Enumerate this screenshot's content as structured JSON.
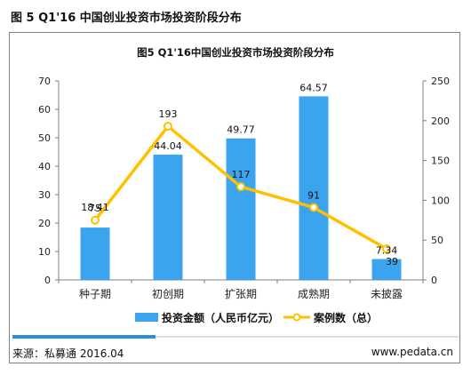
{
  "page": {
    "title": "图 5 Q1'16 中国创业投资市场投资阶段分布",
    "source": "来源：私募通 2016.04",
    "website": "www.pedata.cn"
  },
  "colors": {
    "bar": "#3BA4EE",
    "line": "#FFC000",
    "marker_fill": "#ffffff",
    "accent_bar": "#2E8DD8",
    "axis": "#7f7f7f"
  },
  "chart_data": {
    "type": "bar",
    "title": "图5 Q1'16中国创业投资市场投资阶段分布",
    "categories": [
      "种子期",
      "初创期",
      "扩张期",
      "成熟期",
      "未披露"
    ],
    "series": [
      {
        "name": "投资金额（人民币亿元）",
        "type": "bar",
        "axis": "left",
        "values": [
          18.41,
          44.04,
          49.77,
          64.57,
          7.34
        ]
      },
      {
        "name": "案例数（总）",
        "type": "line",
        "axis": "right",
        "values": [
          75,
          193,
          117,
          91,
          39
        ]
      }
    ],
    "y_left": {
      "range": [
        0,
        70
      ],
      "ticks": [
        0,
        10,
        20,
        30,
        40,
        50,
        60,
        70
      ]
    },
    "y_right": {
      "range": [
        0,
        250
      ],
      "ticks": [
        0,
        50,
        100,
        150,
        200,
        250
      ]
    },
    "legend": "bottom",
    "grid": false
  }
}
